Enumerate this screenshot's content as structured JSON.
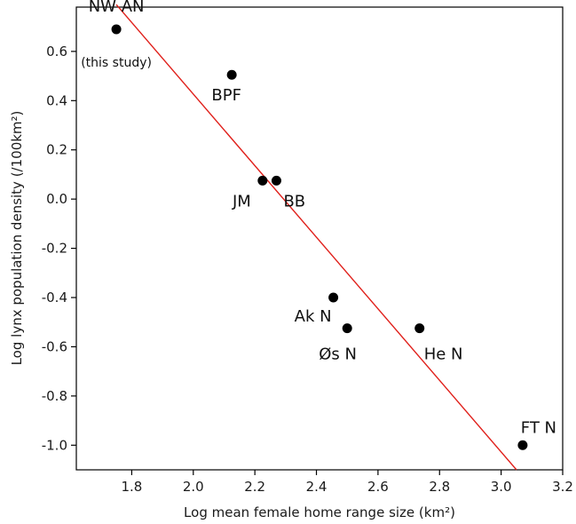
{
  "chart_data": {
    "type": "scatter",
    "title": "",
    "xlabel": "Log mean female home range size (km²)",
    "ylabel": "Log lynx population density (/100km²)",
    "xlim": [
      1.62,
      3.2
    ],
    "ylim": [
      -1.1,
      0.78
    ],
    "xticks": [
      "1.8",
      "2.0",
      "2.2",
      "2.4",
      "2.6",
      "2.8",
      "3.0",
      "3.2"
    ],
    "yticks": [
      "0.6",
      "0.4",
      "0.2",
      "0.0",
      "-0.2",
      "-0.4",
      "-0.6",
      "-0.8",
      "-1.0"
    ],
    "points": [
      {
        "label": "NW AN",
        "sublabel": "(this study)",
        "x": 1.75,
        "y": 0.69
      },
      {
        "label": "BPF",
        "x": 2.125,
        "y": 0.505
      },
      {
        "label": "JM",
        "x": 2.225,
        "y": 0.075
      },
      {
        "label": "BB",
        "x": 2.27,
        "y": 0.075
      },
      {
        "label": "Ak N",
        "x": 2.455,
        "y": -0.4
      },
      {
        "label": "Øs N",
        "x": 2.5,
        "y": -0.525
      },
      {
        "label": "He N",
        "x": 2.735,
        "y": -0.525
      },
      {
        "label": "FT N",
        "x": 3.07,
        "y": -1.0
      }
    ],
    "regression_line": {
      "x": [
        1.75,
        3.05
      ],
      "y": [
        0.79,
        -1.1
      ]
    },
    "line_color": "#e0201b",
    "point_color": "#000000",
    "grid": false
  }
}
